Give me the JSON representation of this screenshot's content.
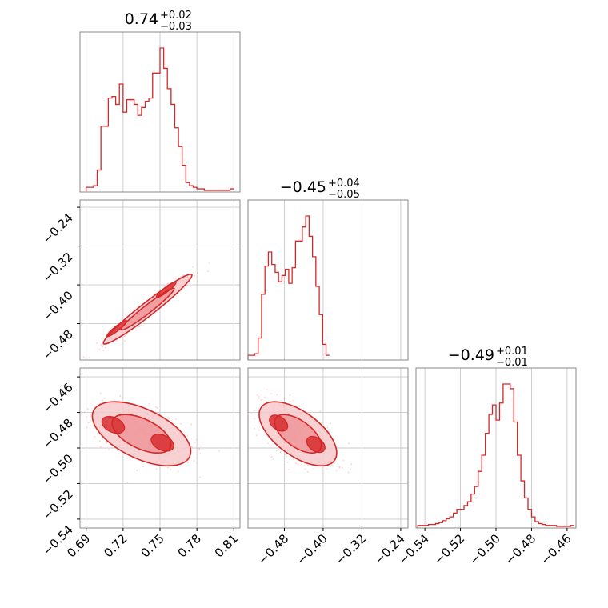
{
  "colors": {
    "series": "#d62728",
    "fill_outer": "#f7c9cb",
    "fill_inner": "#ee8d91",
    "scatter": "#f4a9ab"
  },
  "chart_data": {
    "type": "corner",
    "parameters": [
      {
        "title": {
          "value": "0.74",
          "upper": "+0.02",
          "lower": "−0.03"
        },
        "range": [
          0.685,
          0.815
        ],
        "ticks": [
          0.69,
          0.72,
          0.75,
          0.78,
          0.81
        ],
        "tick_labels": [
          "0.69",
          "0.72",
          "0.75",
          "0.78",
          "0.81"
        ],
        "hist_edges": [
          0.69,
          0.693,
          0.696,
          0.699,
          0.702,
          0.705,
          0.708,
          0.711,
          0.714,
          0.717,
          0.72,
          0.723,
          0.726,
          0.729,
          0.732,
          0.735,
          0.738,
          0.741,
          0.744,
          0.747,
          0.75,
          0.753,
          0.756,
          0.759,
          0.762,
          0.765,
          0.768,
          0.771,
          0.774,
          0.777,
          0.78,
          0.783,
          0.786,
          0.789,
          0.792,
          0.795,
          0.798,
          0.801,
          0.804,
          0.807,
          0.81
        ],
        "hist_counts": [
          2,
          2,
          3,
          13,
          41,
          41,
          59,
          60,
          55,
          68,
          50,
          58,
          58,
          55,
          48,
          53,
          57,
          59,
          75,
          75,
          91,
          78,
          65,
          55,
          40,
          28,
          16,
          5,
          3,
          2,
          1,
          1,
          0,
          0,
          0,
          0,
          0,
          0,
          0,
          1
        ]
      },
      {
        "title": {
          "value": "−0.45",
          "upper": "+0.04",
          "lower": "−0.05"
        },
        "range": [
          -0.555,
          -0.225
        ],
        "ticks": [
          -0.24,
          -0.32,
          -0.4,
          -0.48
        ],
        "tick_labels": [
          "−0.24",
          "−0.32",
          "−0.40",
          "−0.48"
        ],
        "hist_edges": [
          -0.555,
          -0.548,
          -0.541,
          -0.534,
          -0.527,
          -0.52,
          -0.513,
          -0.506,
          -0.499,
          -0.492,
          -0.485,
          -0.478,
          -0.471,
          -0.464,
          -0.457,
          -0.45,
          -0.443,
          -0.436,
          -0.429,
          -0.422,
          -0.415,
          -0.408,
          -0.401,
          -0.394,
          -0.387
        ],
        "hist_counts": [
          2,
          2,
          3,
          13,
          41,
          59,
          68,
          60,
          55,
          49,
          53,
          57,
          48,
          58,
          75,
          75,
          84,
          91,
          78,
          65,
          46,
          28,
          9,
          2
        ]
      },
      {
        "title": {
          "value": "−0.49",
          "upper": "+0.01",
          "lower": "−0.01"
        },
        "range": [
          -0.545,
          -0.455
        ],
        "ticks": [
          -0.46,
          -0.48,
          -0.5,
          -0.52,
          -0.54
        ],
        "tick_labels": [
          "−0.46",
          "−0.48",
          "−0.50",
          "−0.52",
          "−0.54"
        ],
        "hist_edges": [
          -0.544,
          -0.542,
          -0.54,
          -0.538,
          -0.536,
          -0.534,
          -0.532,
          -0.53,
          -0.528,
          -0.526,
          -0.524,
          -0.522,
          -0.52,
          -0.518,
          -0.516,
          -0.514,
          -0.512,
          -0.51,
          -0.508,
          -0.506,
          -0.504,
          -0.502,
          -0.5,
          -0.498,
          -0.496,
          -0.494,
          -0.492,
          -0.49,
          -0.488,
          -0.486,
          -0.484,
          -0.482,
          -0.48,
          -0.478,
          -0.476,
          -0.474,
          -0.472,
          -0.47,
          -0.468,
          -0.466,
          -0.464,
          -0.462,
          -0.46,
          -0.458,
          -0.456
        ],
        "hist_counts": [
          1,
          1,
          1,
          2,
          2,
          3,
          4,
          6,
          8,
          10,
          14,
          18,
          18,
          22,
          26,
          34,
          42,
          58,
          75,
          98,
          118,
          128,
          112,
          130,
          150,
          150,
          145,
          110,
          75,
          48,
          30,
          18,
          10,
          5,
          3,
          2,
          1,
          1,
          1,
          0,
          0,
          0,
          0,
          1
        ]
      }
    ],
    "panels": [
      {
        "x": 0,
        "y": 1,
        "center": [
          0.74,
          -0.45
        ],
        "sx": 0.018,
        "sy": 0.036,
        "rho": 0.97,
        "modes": [
          [
            0.715,
            -0.49
          ],
          [
            0.755,
            -0.41
          ]
        ]
      },
      {
        "x": 0,
        "y": 2,
        "center": [
          0.735,
          -0.492
        ],
        "sx": 0.02,
        "sy": 0.009,
        "rho": -0.55,
        "modes": [
          [
            0.712,
            -0.487
          ],
          [
            0.752,
            -0.497
          ]
        ]
      },
      {
        "x": 1,
        "y": 2,
        "center": [
          -0.452,
          -0.492
        ],
        "sx": 0.04,
        "sy": 0.009,
        "rho": -0.6,
        "modes": [
          [
            -0.492,
            -0.486
          ],
          [
            -0.415,
            -0.498
          ]
        ]
      }
    ]
  }
}
